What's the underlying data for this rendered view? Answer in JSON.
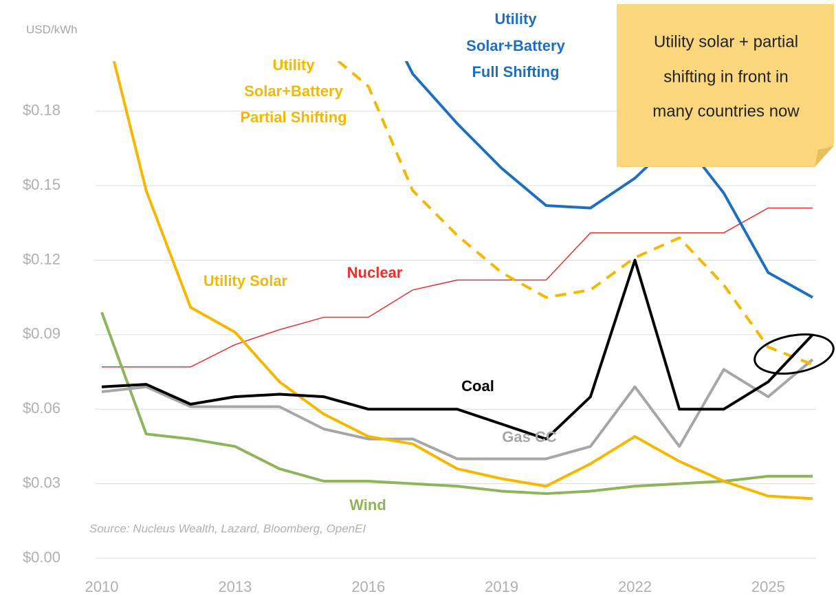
{
  "chart_data": {
    "type": "line",
    "ylabel": "USD/kWh",
    "source": "Source: Nucleus Wealth, Lazard, Bloomberg, OpenEI",
    "note": [
      "Utility solar + partial",
      "shifting in front in",
      "many countries now"
    ],
    "x": [
      2010,
      2011,
      2012,
      2013,
      2014,
      2015,
      2016,
      2017,
      2018,
      2019,
      2020,
      2021,
      2022,
      2023,
      2024,
      2025,
      2026
    ],
    "xlim": [
      2010,
      2026
    ],
    "xticks": [
      2010,
      2013,
      2016,
      2019,
      2022,
      2025
    ],
    "ylim": [
      0,
      0.2
    ],
    "yticks": [
      {
        "value": 0,
        "label": "$0.00"
      },
      {
        "value": 0.03,
        "label": "$0.03"
      },
      {
        "value": 0.06,
        "label": "$0.06"
      },
      {
        "value": 0.09,
        "label": "$0.09"
      },
      {
        "value": 0.12,
        "label": "$0.12"
      },
      {
        "value": 0.15,
        "label": "$0.15"
      },
      {
        "value": 0.18,
        "label": "$0.18"
      }
    ],
    "grid": true,
    "series": [
      {
        "name": [
          "Nuclear"
        ],
        "color": "#e8302e",
        "width": 1.5,
        "dashed": false,
        "values": [
          0.077,
          0.077,
          0.077,
          0.086,
          0.092,
          0.097,
          0.097,
          0.108,
          0.112,
          0.112,
          0.112,
          0.131,
          0.131,
          0.131,
          0.131,
          0.141,
          0.141
        ]
      },
      {
        "name": [
          "Wind"
        ],
        "color": "#8db55a",
        "width": 4,
        "dashed": false,
        "values": [
          0.099,
          0.05,
          0.048,
          0.045,
          0.036,
          0.031,
          0.031,
          0.03,
          0.029,
          0.027,
          0.026,
          0.027,
          0.029,
          0.03,
          0.031,
          0.033,
          0.033
        ]
      },
      {
        "name": [
          "Gas CC"
        ],
        "color": "#a6a6a6",
        "width": 4,
        "dashed": false,
        "values": [
          0.067,
          0.069,
          0.061,
          0.061,
          0.061,
          0.052,
          0.048,
          0.048,
          0.04,
          0.04,
          0.04,
          0.045,
          0.069,
          0.045,
          0.076,
          0.065,
          0.08
        ]
      },
      {
        "name": [
          "Utility Solar"
        ],
        "color": "#f5b800",
        "width": 4,
        "dashed": false,
        "values": [
          0.22,
          0.148,
          0.101,
          0.091,
          0.071,
          0.058,
          0.049,
          0.046,
          0.036,
          0.032,
          0.029,
          0.038,
          0.049,
          0.039,
          0.031,
          0.025,
          0.024
        ]
      },
      {
        "name": [
          "Utility",
          "Solar+Battery",
          "Partial Shifting"
        ],
        "color": "#f5b800",
        "width": 4,
        "dashed": true,
        "values": [
          null,
          null,
          null,
          null,
          null,
          0.205,
          0.19,
          0.148,
          0.13,
          0.115,
          0.105,
          0.108,
          0.121,
          0.129,
          0.11,
          0.085,
          0.078
        ]
      },
      {
        "name": [
          "Coal"
        ],
        "color": "#000000",
        "width": 4,
        "dashed": false,
        "values": [
          0.069,
          0.07,
          0.062,
          0.065,
          0.066,
          0.065,
          0.06,
          0.06,
          0.06,
          0.054,
          0.048,
          0.065,
          0.12,
          0.06,
          0.06,
          0.071,
          0.09
        ]
      },
      {
        "name": [
          "Utility",
          "Solar+Battery",
          "Full Shifting"
        ],
        "color": "#1f6fbf",
        "width": 4,
        "dashed": false,
        "values": [
          null,
          null,
          null,
          null,
          null,
          null,
          0.23,
          0.195,
          0.175,
          0.157,
          0.142,
          0.141,
          0.153,
          0.17,
          0.147,
          0.115,
          0.105
        ]
      }
    ]
  }
}
